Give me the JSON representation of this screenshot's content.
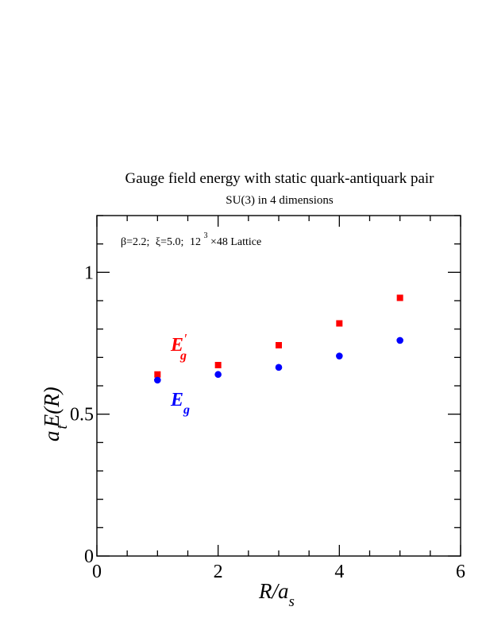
{
  "chart_data": {
    "type": "scatter",
    "title": "Gauge field energy with static quark-antiquark pair",
    "subtitle": "SU(3) in 4 dimensions",
    "annotation": {
      "beta": "β=2.2;",
      "xi": "ξ=5.0;",
      "lattice_base": "12",
      "lattice_exp": "3",
      "lattice_rest": "×48 Lattice"
    },
    "xlabel": {
      "main": "R/a",
      "sub": "s"
    },
    "ylabel": {
      "pre": "a",
      "sub": "t",
      "main": "E(R)"
    },
    "xlim": [
      0,
      6
    ],
    "ylim": [
      0,
      1.2
    ],
    "xticks": [
      0,
      2,
      4,
      6
    ],
    "yticks": [
      0,
      0.5,
      1
    ],
    "xtick_labels": [
      "0",
      "2",
      "4",
      "6"
    ],
    "ytick_labels": [
      "0",
      "0.5",
      "1"
    ],
    "grid": false,
    "legend": "none",
    "series": [
      {
        "label_main": "E",
        "label_sub": "g",
        "label_prime": "′",
        "color": "#ff0000",
        "marker": "square",
        "x": [
          1,
          2,
          3,
          4,
          5
        ],
        "y": [
          0.64,
          0.673,
          0.743,
          0.82,
          0.91
        ]
      },
      {
        "label_main": "E",
        "label_sub": "g",
        "label_prime": "",
        "color": "#0000ff",
        "marker": "circle",
        "x": [
          1,
          2,
          3,
          4,
          5
        ],
        "y": [
          0.62,
          0.64,
          0.665,
          0.705,
          0.76
        ]
      }
    ]
  }
}
